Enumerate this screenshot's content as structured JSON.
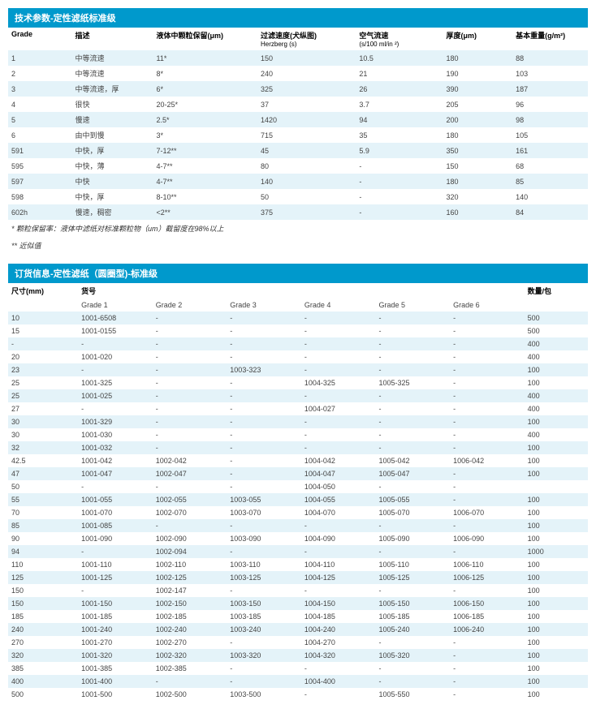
{
  "table1": {
    "title": "技术参数-定性滤纸标准级",
    "headers": [
      {
        "main": "Grade",
        "sub": ""
      },
      {
        "main": "描述",
        "sub": ""
      },
      {
        "main": "液体中颗粒保留(μm)",
        "sub": ""
      },
      {
        "main": "过滤速度(犬纵图)",
        "sub": "Herzberg (s)"
      },
      {
        "main": "空气流速",
        "sub": "(s/100 ml/in ²)"
      },
      {
        "main": "厚度(μm)",
        "sub": ""
      },
      {
        "main": "基本重量(g/m²)",
        "sub": ""
      }
    ],
    "rows": [
      [
        "1",
        "中等流速",
        "11*",
        "150",
        "10.5",
        "180",
        "88"
      ],
      [
        "2",
        "中等流速",
        "8*",
        "240",
        "21",
        "190",
        "103"
      ],
      [
        "3",
        "中等流速，厚",
        "6*",
        "325",
        "26",
        "390",
        "187"
      ],
      [
        "4",
        "很快",
        "20-25*",
        "37",
        "3.7",
        "205",
        "96"
      ],
      [
        "5",
        "慢速",
        "2.5*",
        "1420",
        "94",
        "200",
        "98"
      ],
      [
        "6",
        "由中到慢",
        "3*",
        "715",
        "35",
        "180",
        "105"
      ],
      [
        "591",
        "中快，厚",
        "7-12**",
        "45",
        "5.9",
        "350",
        "161"
      ],
      [
        "595",
        "中快，薄",
        "4-7**",
        "80",
        "-",
        "150",
        "68"
      ],
      [
        "597",
        "中快",
        "4-7**",
        "140",
        "-",
        "180",
        "85"
      ],
      [
        "598",
        "中快，厚",
        "8-10**",
        "50",
        "-",
        "320",
        "140"
      ],
      [
        "602h",
        "慢速，稠密",
        "<2**",
        "375",
        "-",
        "160",
        "84"
      ]
    ],
    "footnotes": [
      "* 颗粒保留率：液体中滤纸对标准颗粒物（um）截留度在98%以上",
      "** 近似值"
    ]
  },
  "table2": {
    "title": "订货信息-定性滤纸（圆圈型)-标准级",
    "headers": [
      "尺寸(mm)",
      "货号",
      "",
      "",
      "",
      "",
      "",
      "数量/包"
    ],
    "subheaders": [
      "",
      "Grade 1",
      "Grade 2",
      "Grade 3",
      "Grade 4",
      "Grade 5",
      "Grade 6",
      ""
    ],
    "rows": [
      [
        "10",
        "1001-6508",
        "-",
        "-",
        "-",
        "-",
        "-",
        "500"
      ],
      [
        "15",
        "1001-0155",
        "-",
        "-",
        "-",
        "-",
        "-",
        "500"
      ],
      [
        "-",
        "-",
        "-",
        "-",
        "-",
        "-",
        "-",
        "400"
      ],
      [
        "20",
        "1001-020",
        "-",
        "-",
        "-",
        "-",
        "-",
        "400"
      ],
      [
        "23",
        "-",
        "-",
        "1003-323",
        "-",
        "-",
        "-",
        "100"
      ],
      [
        "25",
        "1001-325",
        "-",
        "-",
        "1004-325",
        "1005-325",
        "-",
        "100"
      ],
      [
        "25",
        "1001-025",
        "-",
        "-",
        "-",
        "-",
        "-",
        "400"
      ],
      [
        "27",
        "-",
        "-",
        "-",
        "1004-027",
        "-",
        "-",
        "400"
      ],
      [
        "30",
        "1001-329",
        "-",
        "-",
        "-",
        "-",
        "-",
        "100"
      ],
      [
        "30",
        "1001-030",
        "-",
        "-",
        "-",
        "-",
        "-",
        "400"
      ],
      [
        "32",
        "1001-032",
        "-",
        "-",
        "-",
        "-",
        "-",
        "100"
      ],
      [
        "42.5",
        "1001-042",
        "1002-042",
        "-",
        "1004-042",
        "1005-042",
        "1006-042",
        "100"
      ],
      [
        "47",
        "1001-047",
        "1002-047",
        "-",
        "1004-047",
        "1005-047",
        "-",
        "100"
      ],
      [
        "50",
        "-",
        "-",
        "-",
        "1004-050",
        "-",
        "-",
        ""
      ],
      [
        "55",
        "1001-055",
        "1002-055",
        "1003-055",
        "1004-055",
        "1005-055",
        "-",
        "100"
      ],
      [
        "70",
        "1001-070",
        "1002-070",
        "1003-070",
        "1004-070",
        "1005-070",
        "1006-070",
        "100"
      ],
      [
        "85",
        "1001-085",
        "-",
        "-",
        "-",
        "-",
        "-",
        "100"
      ],
      [
        "90",
        "1001-090",
        "1002-090",
        "1003-090",
        "1004-090",
        "1005-090",
        "1006-090",
        "100"
      ],
      [
        "94",
        "-",
        "1002-094",
        "-",
        "-",
        "-",
        "-",
        "1000"
      ],
      [
        "110",
        "1001-110",
        "1002-110",
        "1003-110",
        "1004-110",
        "1005-110",
        "1006-110",
        "100"
      ],
      [
        "125",
        "1001-125",
        "1002-125",
        "1003-125",
        "1004-125",
        "1005-125",
        "1006-125",
        "100"
      ],
      [
        "150",
        "-",
        "1002-147",
        "-",
        "-",
        "-",
        "-",
        "100"
      ],
      [
        "150",
        "1001-150",
        "1002-150",
        "1003-150",
        "1004-150",
        "1005-150",
        "1006-150",
        "100"
      ],
      [
        "185",
        "1001-185",
        "1002-185",
        "1003-185",
        "1004-185",
        "1005-185",
        "1006-185",
        "100"
      ],
      [
        "240",
        "1001-240",
        "1002-240",
        "1003-240",
        "1004-240",
        "1005-240",
        "1006-240",
        "100"
      ],
      [
        "270",
        "1001-270",
        "1002-270",
        "-",
        "1004-270",
        "-",
        "-",
        "100"
      ],
      [
        "320",
        "1001-320",
        "1002-320",
        "1003-320",
        "1004-320",
        "1005-320",
        "-",
        "100"
      ],
      [
        "385",
        "1001-385",
        "1002-385",
        "-",
        "-",
        "-",
        "-",
        "100"
      ],
      [
        "400",
        "1001-400",
        "-",
        "-",
        "1004-400",
        "-",
        "-",
        "100"
      ],
      [
        "500",
        "1001-500",
        "1002-500",
        "1003-500",
        "-",
        "1005-550",
        "-",
        "100"
      ]
    ]
  }
}
